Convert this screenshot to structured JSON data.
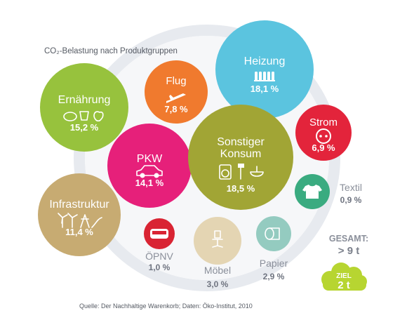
{
  "chart_data": {
    "type": "bubble",
    "title": "CO₂-Belastung nach Produktgruppen",
    "source": "Quelle: Der Nachhaltige Warenkorb; Daten: Öko-Institut, 2010",
    "unit": "%",
    "series": [
      {
        "name": "Ernährung",
        "value": 15.2,
        "value_label": "15,2 %",
        "color": "#97c23d",
        "icon": "food-icons"
      },
      {
        "name": "Flug",
        "value": 7.8,
        "value_label": "7,8 %",
        "color": "#f07a2e",
        "icon": "airplane-icon"
      },
      {
        "name": "Heizung",
        "value": 18.1,
        "value_label": "18,1 %",
        "color": "#5bc4df",
        "icon": "radiator-icon"
      },
      {
        "name": "Strom",
        "value": 6.9,
        "value_label": "6,9 %",
        "color": "#e3243b",
        "icon": "power-socket-icon"
      },
      {
        "name": "PKW",
        "value": 14.1,
        "value_label": "14,1 %",
        "color": "#e6207a",
        "icon": "car-icon"
      },
      {
        "name": "Sonstiger Konsum",
        "value": 18.5,
        "value_label": "18,5 %",
        "color": "#a1a535",
        "icon": "consumer-goods-icons"
      },
      {
        "name": "Textil",
        "value": 0.9,
        "value_label": "0,9 %",
        "color": "#3aab80",
        "icon": "tshirt-icon"
      },
      {
        "name": "Infrastruktur",
        "value": 11.4,
        "value_label": "11,4 %",
        "color": "#c7ab72",
        "icon": "wind-power-icons"
      },
      {
        "name": "ÖPNV",
        "value": 1.0,
        "value_label": "1,0 %",
        "color": "#d92433",
        "icon": "bus-icon"
      },
      {
        "name": "Möbel",
        "value": 3.0,
        "value_label": "3,0 %",
        "color": "#e4d5b3",
        "icon": "chair-icon"
      },
      {
        "name": "Papier",
        "value": 2.9,
        "value_label": "2,9 %",
        "color": "#94cbc0",
        "icon": "paper-roll-icon"
      }
    ],
    "total": {
      "label": "GESAMT:",
      "value": "> 9 t"
    },
    "goal": {
      "label": "ZIEL",
      "value": "2 t",
      "color": "#b7d531"
    }
  }
}
